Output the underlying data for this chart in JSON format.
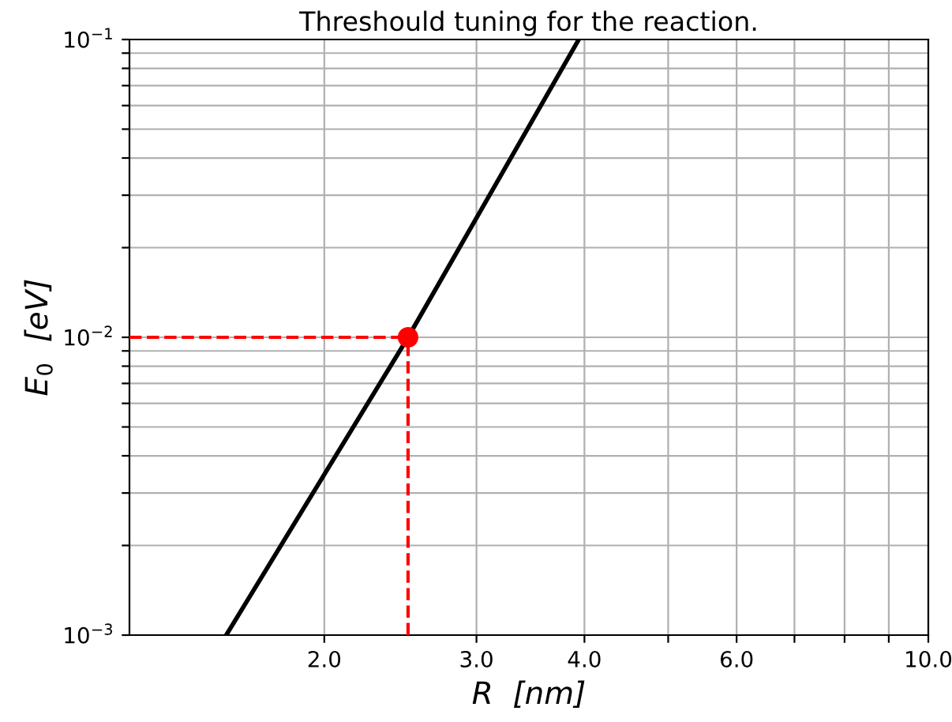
{
  "chart_data": {
    "type": "line",
    "title": "Threshould tuning for the reaction.",
    "xlabel": "R  [nm]",
    "ylabel": "E$_{0}$  [eV]",
    "log": "xy",
    "grid": true,
    "xlim": [
      1.19,
      10.0
    ],
    "ylim": [
      0.001,
      0.1
    ],
    "xticks": [
      {
        "value": 2,
        "label": "2.0"
      },
      {
        "value": 3,
        "label": "3.0"
      },
      {
        "value": 4,
        "label": "4.0"
      },
      {
        "value": 5,
        "label": null
      },
      {
        "value": 6,
        "label": "6.0"
      },
      {
        "value": 7,
        "label": null
      },
      {
        "value": 8,
        "label": null
      },
      {
        "value": 9,
        "label": null
      },
      {
        "value": 10,
        "label": "10.0"
      }
    ],
    "yticks": [
      {
        "value": 0.001,
        "label": "10$^{−3}$"
      },
      {
        "value": 0.002,
        "label": null
      },
      {
        "value": 0.003,
        "label": null
      },
      {
        "value": 0.004,
        "label": null
      },
      {
        "value": 0.005,
        "label": null
      },
      {
        "value": 0.006,
        "label": null
      },
      {
        "value": 0.007,
        "label": null
      },
      {
        "value": 0.008,
        "label": null
      },
      {
        "value": 0.009,
        "label": null
      },
      {
        "value": 0.01,
        "label": "10$^{−2}$"
      },
      {
        "value": 0.02,
        "label": null
      },
      {
        "value": 0.03,
        "label": null
      },
      {
        "value": 0.04,
        "label": null
      },
      {
        "value": 0.05,
        "label": null
      },
      {
        "value": 0.06,
        "label": null
      },
      {
        "value": 0.07,
        "label": null
      },
      {
        "value": 0.08,
        "label": null
      },
      {
        "value": 0.09,
        "label": null
      },
      {
        "value": 0.1,
        "label": "10$^{−1}$"
      }
    ],
    "series": [
      {
        "color": "#000000",
        "line_style": "solid",
        "marker": "none",
        "x": [
          1.54,
          2.5,
          3.94
        ],
        "values": [
          0.001,
          0.01,
          0.1
        ]
      },
      {
        "type": "line",
        "color": "#ff0000",
        "line_style": "dashed",
        "marker": "none",
        "x": [
          1.19,
          2.5
        ],
        "values": [
          0.01,
          0.01
        ]
      },
      {
        "type": "line",
        "color": "#ff0000",
        "line_style": "dashed",
        "marker": "none",
        "x": [
          2.5,
          2.5
        ],
        "values": [
          0.001,
          0.01
        ]
      },
      {
        "type": "scatter",
        "color": "#ff0000",
        "marker": "circle",
        "x": [
          2.5
        ],
        "values": [
          0.01
        ]
      }
    ]
  }
}
